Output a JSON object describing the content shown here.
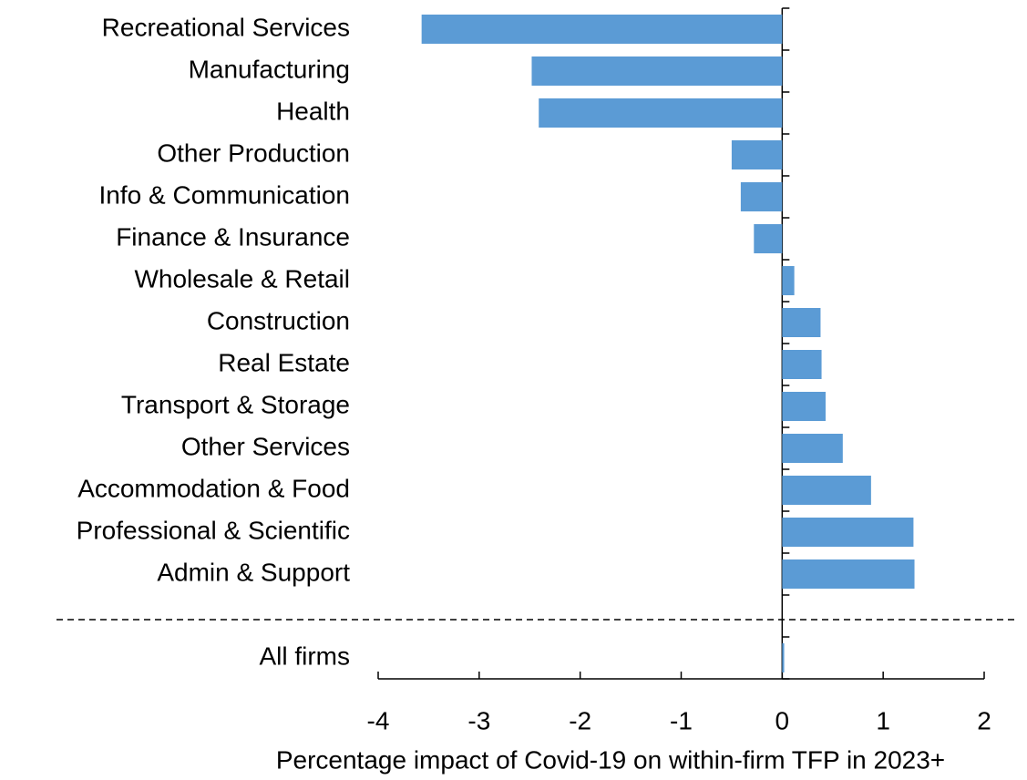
{
  "chart_data": {
    "type": "hbar",
    "x_label": "Percentage impact of Covid-19 on within-firm TFP in 2023+",
    "categories": [
      "Recreational Services",
      "Manufacturing",
      "Health",
      "Other Production",
      "Info & Communication",
      "Finance & Insurance",
      "Wholesale & Retail",
      "Construction",
      "Real Estate",
      "Transport & Storage",
      "Other Services",
      "Accommodation & Food",
      "Professional & Scientific",
      "Admin & Support",
      null,
      "All firms"
    ],
    "values": [
      -3.57,
      -2.48,
      -2.41,
      -0.5,
      -0.41,
      -0.28,
      0.12,
      0.38,
      0.39,
      0.43,
      0.6,
      0.88,
      1.3,
      1.31,
      null,
      0.02
    ],
    "color": "#5b9bd5",
    "xlim": [
      -4,
      2
    ],
    "xticks": [
      -4,
      -3,
      -2,
      -1,
      0,
      1,
      2
    ]
  }
}
